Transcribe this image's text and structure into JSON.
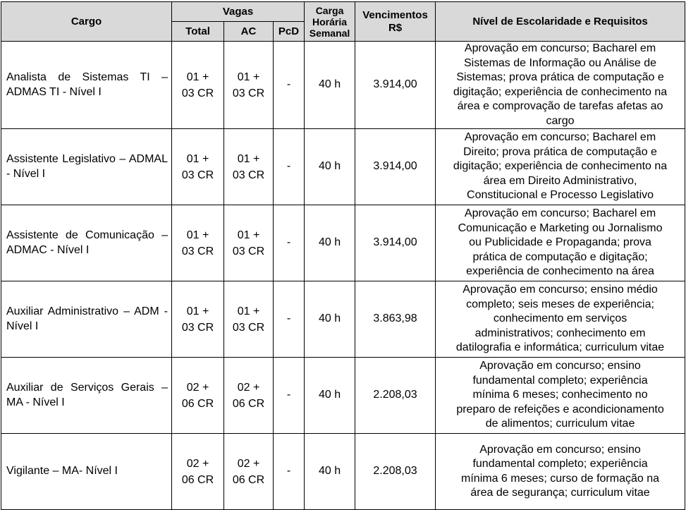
{
  "header": {
    "cargo": "Cargo",
    "vagas": "Vagas",
    "total": "Total",
    "ac": "AC",
    "pcd": "PcD",
    "carga": "Carga\nHorária\nSemanal",
    "vencimentos": "Vencimentos\nR$",
    "requisitos": "Nível de Escolaridade e Requisitos"
  },
  "rows": [
    {
      "cargo": "Analista de Sistemas TI – ADMAS TI - Nível I",
      "total": "01 +\n03 CR",
      "ac": "01 +\n03 CR",
      "pcd": "-",
      "carga": "40 h",
      "vencimentos": "3.914,00",
      "requisitos": "Aprovação em concurso; Bacharel em\nSistemas de Informação ou Análise de\nSistemas; prova prática de computação e\ndigitação; experiência de conhecimento na\nárea e comprovação de tarefas afetas ao\ncargo"
    },
    {
      "cargo": "Assistente Legislativo – ADMAL - Nível I",
      "total": "01 +\n03 CR",
      "ac": "01 +\n03 CR",
      "pcd": "-",
      "carga": "40 h",
      "vencimentos": "3.914,00",
      "requisitos": "Aprovação em concurso; Bacharel em\nDireito; prova prática de computação e\ndigitação; experiência de conhecimento na\nárea em Direito Administrativo,\nConstitucional e Processo Legislativo"
    },
    {
      "cargo": "Assistente de Comunicação – ADMAC - Nível I",
      "total": "01 +\n03 CR",
      "ac": "01 +\n03 CR",
      "pcd": "-",
      "carga": "40 h",
      "vencimentos": "3.914,00",
      "requisitos": "Aprovação em concurso; Bacharel em\nComunicação e Marketing ou Jornalismo\nou Publicidade e Propaganda; prova\nprática de computação e digitação;\nexperiência de conhecimento na área"
    },
    {
      "cargo": "Auxiliar Administrativo – ADM - Nível I",
      "total": "01 +\n03 CR",
      "ac": "01 +\n03 CR",
      "pcd": "-",
      "carga": "40 h",
      "vencimentos": "3.863,98",
      "requisitos": "Aprovação em concurso; ensino médio\ncompleto; seis meses de experiência;\nconhecimento em serviços\nadministrativos; conhecimento em\ndatilografia e informática; curriculum vitae"
    },
    {
      "cargo": "Auxiliar de Serviços Gerais – MA - Nível I",
      "total": "02 +\n06 CR",
      "ac": "02 +\n06 CR",
      "pcd": "-",
      "carga": "40 h",
      "vencimentos": "2.208,03",
      "requisitos": "Aprovação em concurso; ensino\nfundamental completo; experiência\nmínima 6 meses; conhecimento no\npreparo de refeições e acondicionamento\nde alimentos; curriculum vitae"
    },
    {
      "cargo": "Vigilante – MA- Nível I",
      "total": "02 +\n06 CR",
      "ac": "02 +\n06 CR",
      "pcd": "-",
      "carga": "40 h",
      "vencimentos": "2.208,03",
      "requisitos": "Aprovação em concurso; ensino\nfundamental completo; experiência\nmínima 6 meses; curso de formação na\nárea de segurança; curriculum vitae"
    }
  ]
}
